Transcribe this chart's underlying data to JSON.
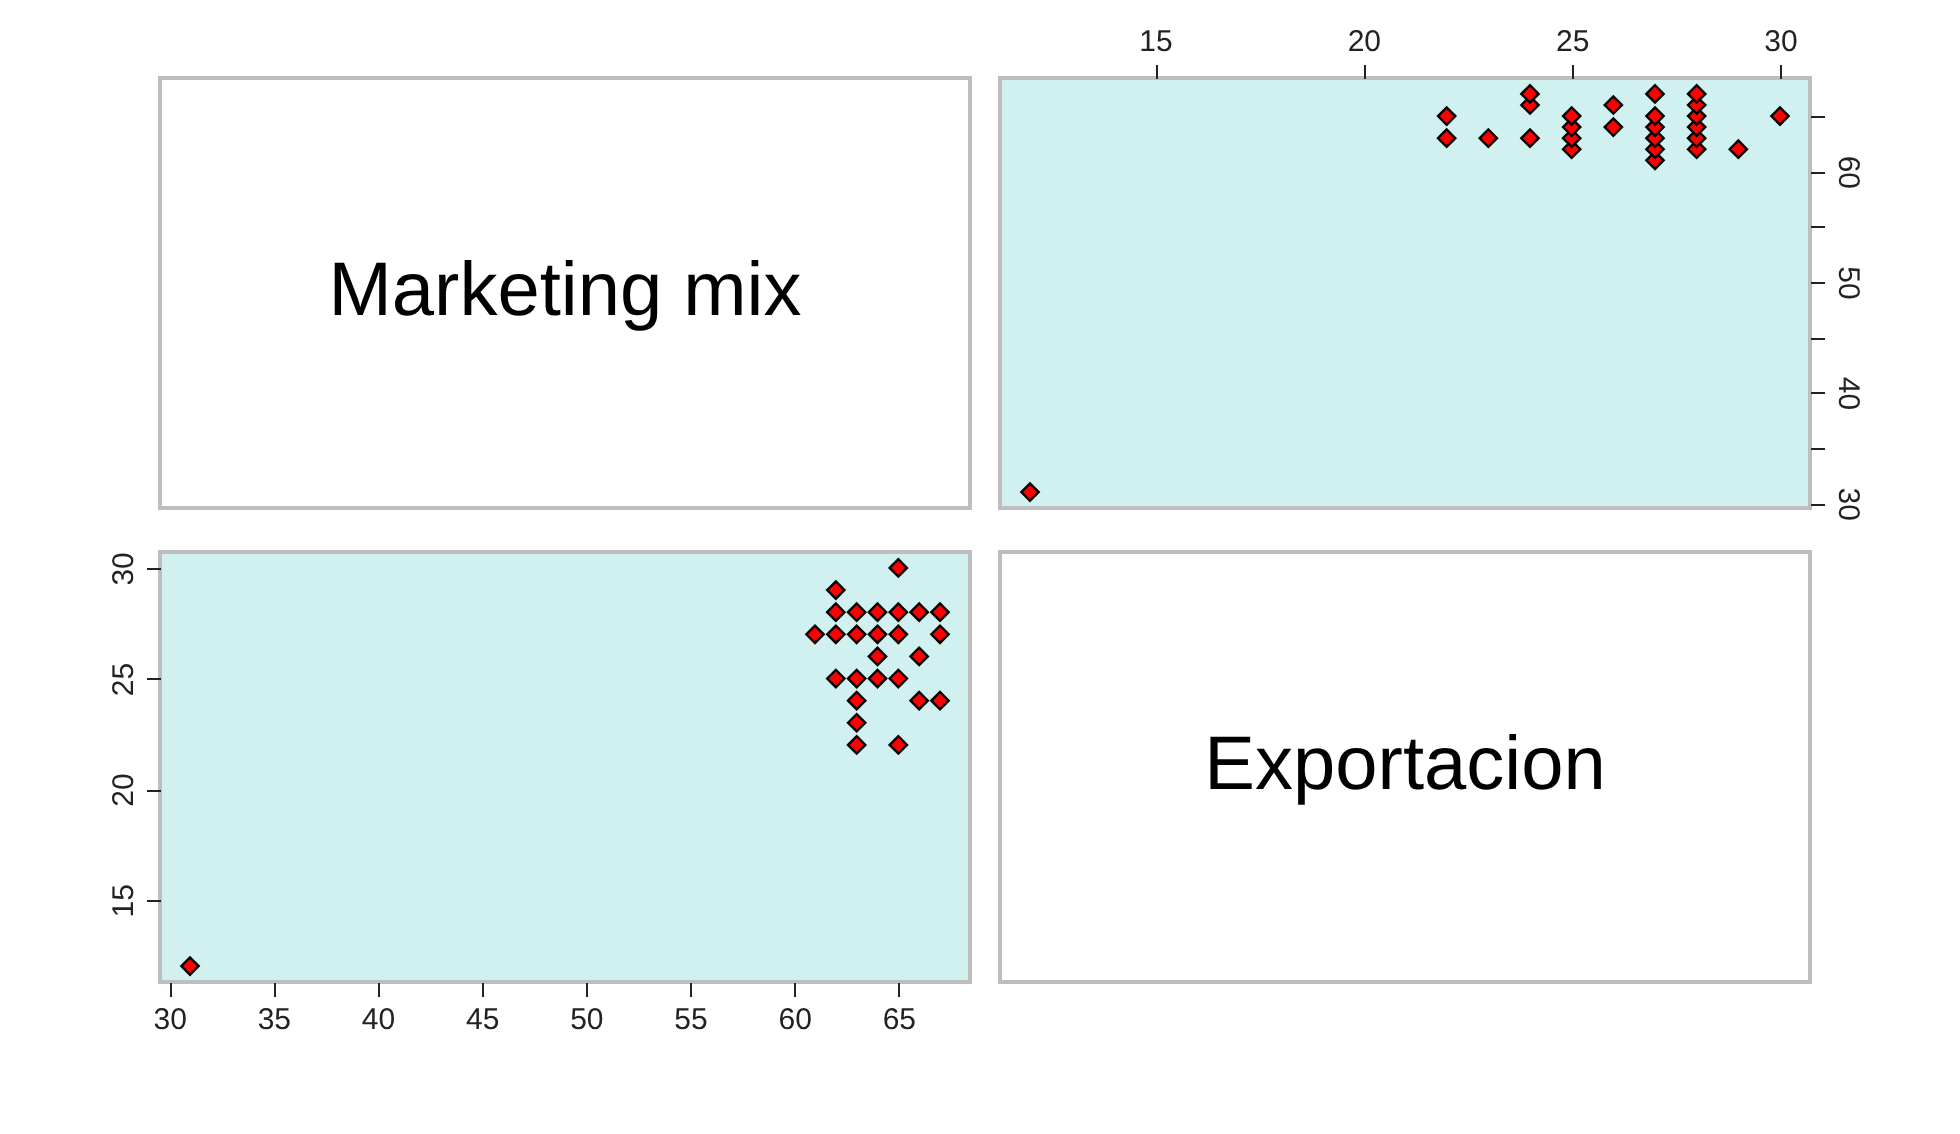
{
  "chart_data": [
    {
      "type": "other",
      "title": "Marketing mix"
    },
    {
      "type": "scatter",
      "marker": "diamond",
      "x": [
        30,
        29,
        28,
        28,
        28,
        28,
        28,
        28,
        27,
        27,
        27,
        27,
        27,
        27,
        26,
        26,
        25,
        25,
        25,
        25,
        24,
        24,
        24,
        23,
        22,
        22,
        12
      ],
      "series": [
        {
          "color": "#ff0000",
          "values": [
            65,
            62,
            62,
            63,
            64,
            65,
            66,
            67,
            61,
            62,
            63,
            64,
            65,
            67,
            64,
            66,
            62,
            63,
            64,
            65,
            63,
            66,
            67,
            63,
            63,
            65,
            31
          ]
        }
      ],
      "xlim": [
        11.28,
        30.72
      ],
      "xticks": [
        15,
        20,
        25,
        30
      ],
      "ylim": [
        29.56,
        68.44
      ],
      "yticks": [
        30,
        {
          "value": 35,
          "label": null
        },
        40,
        {
          "value": 45,
          "label": null
        },
        50,
        {
          "value": 55,
          "label": null
        },
        60,
        {
          "value": 65,
          "label": null
        }
      ]
    },
    {
      "type": "scatter",
      "marker": "diamond",
      "x": [
        65,
        62,
        62,
        63,
        64,
        65,
        66,
        67,
        61,
        62,
        63,
        64,
        65,
        67,
        64,
        66,
        62,
        63,
        64,
        65,
        63,
        66,
        67,
        63,
        63,
        65,
        31
      ],
      "series": [
        {
          "color": "#ff0000",
          "values": [
            30,
            29,
            28,
            28,
            28,
            28,
            28,
            28,
            27,
            27,
            27,
            27,
            27,
            27,
            26,
            26,
            25,
            25,
            25,
            25,
            24,
            24,
            24,
            23,
            22,
            22,
            12
          ]
        }
      ],
      "xlim": [
        29.56,
        68.44
      ],
      "xticks": [
        30,
        35,
        40,
        45,
        50,
        55,
        60,
        65
      ],
      "ylim": [
        11.28,
        30.72
      ],
      "yticks": [
        15,
        20,
        25,
        30
      ]
    },
    {
      "type": "other",
      "title": "Exportacion"
    }
  ]
}
